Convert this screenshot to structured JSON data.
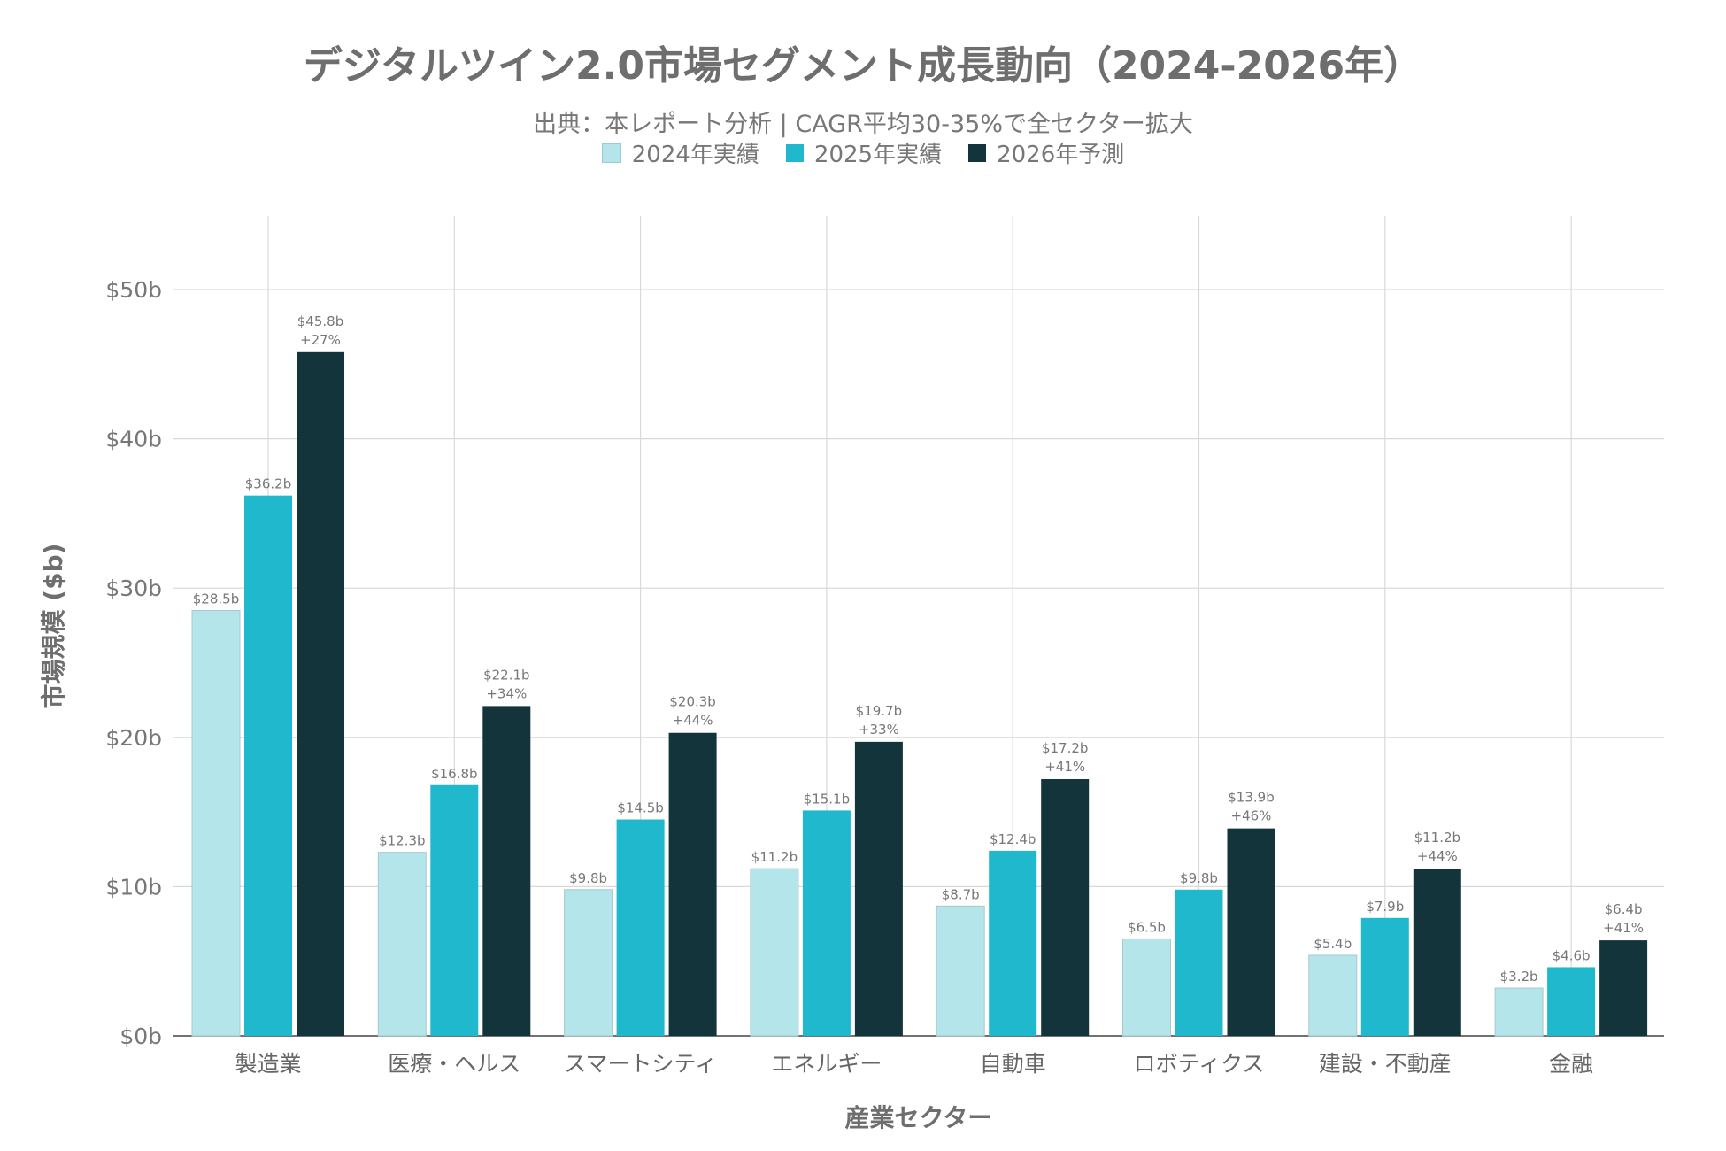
{
  "chart_data": {
    "type": "bar",
    "title": "デジタルツイン2.0市場セグメント成長動向（2024-2026年）",
    "subtitle": "出典：本レポート分析 | CAGR平均30-35%で全セクター拡大",
    "xlabel": "産業セクター",
    "ylabel": "市場規模 ($b)",
    "ylim": [
      0,
      55
    ],
    "yticks": [
      0,
      10,
      20,
      30,
      40,
      50
    ],
    "ytick_labels": [
      "$0b",
      "$10b",
      "$20b",
      "$30b",
      "$40b",
      "$50b"
    ],
    "grid": true,
    "legend_position": "top-center",
    "categories": [
      "製造業",
      "医療・ヘルス",
      "スマートシティ",
      "エネルギー",
      "自動車",
      "ロボティクス",
      "建設・不動産",
      "金融"
    ],
    "series": [
      {
        "name": "2024年実績",
        "color": "#b3e5eb",
        "values": [
          28.5,
          12.3,
          9.8,
          11.2,
          8.7,
          6.5,
          5.4,
          3.2
        ],
        "labels": [
          "$28.5b",
          "$12.3b",
          "$9.8b",
          "$11.2b",
          "$8.7b",
          "$6.5b",
          "$5.4b",
          "$3.2b"
        ]
      },
      {
        "name": "2025年実績",
        "color": "#1fb8cd",
        "values": [
          36.2,
          16.8,
          14.5,
          15.1,
          12.4,
          9.8,
          7.9,
          4.6
        ],
        "labels": [
          "$36.2b",
          "$16.8b",
          "$14.5b",
          "$15.1b",
          "$12.4b",
          "$9.8b",
          "$7.9b",
          "$4.6b"
        ]
      },
      {
        "name": "2026年予測",
        "color": "#13343b",
        "values": [
          45.8,
          22.1,
          20.3,
          19.7,
          17.2,
          13.9,
          11.2,
          6.4
        ],
        "labels": [
          "$45.8b",
          "$22.1b",
          "$20.3b",
          "$19.7b",
          "$17.2b",
          "$13.9b",
          "$11.2b",
          "$6.4b"
        ],
        "growth": [
          "+27%",
          "+34%",
          "+44%",
          "+33%",
          "+41%",
          "+46%",
          "+44%",
          "+41%"
        ]
      }
    ]
  }
}
